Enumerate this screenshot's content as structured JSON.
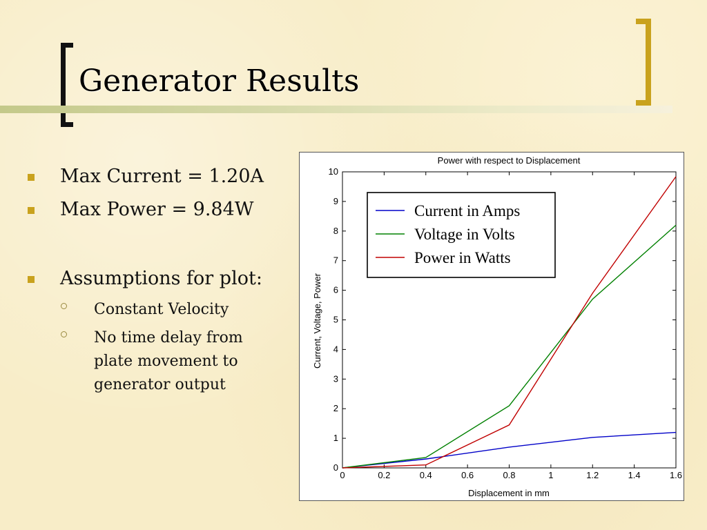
{
  "slide": {
    "title": "Generator Results",
    "bullets": [
      {
        "text": "Max Current = 1.20A"
      },
      {
        "text": "Max Power = 9.84W"
      },
      {
        "text": "Assumptions for plot:"
      }
    ],
    "sub_bullets": [
      {
        "text": "Constant Velocity"
      },
      {
        "text": "No time delay from plate movement to generator output"
      }
    ],
    "colors": {
      "accent": "#c9a21d",
      "background": "#f8edc8"
    }
  },
  "chart_data": {
    "type": "line",
    "title": "Power with respect to Displacement",
    "xlabel": "Displacement in mm",
    "ylabel": "Current, Voltage, Power",
    "xlim": [
      0,
      1.6
    ],
    "ylim": [
      0,
      10
    ],
    "xticks": [
      0,
      0.2,
      0.4,
      0.6,
      0.8,
      1,
      1.2,
      1.4,
      1.6
    ],
    "yticks": [
      0,
      1,
      2,
      3,
      4,
      5,
      6,
      7,
      8,
      9,
      10
    ],
    "grid": false,
    "legend_position": "top-left",
    "series": [
      {
        "name": "Current in Amps",
        "color": "#0000c8",
        "x": [
          0,
          0.4,
          0.8,
          1.2,
          1.6
        ],
        "y": [
          0,
          0.3,
          0.7,
          1.03,
          1.2
        ]
      },
      {
        "name": "Voltage in Volts",
        "color": "#008000",
        "x": [
          0,
          0.4,
          0.8,
          1.2,
          1.6
        ],
        "y": [
          0,
          0.35,
          2.1,
          5.7,
          8.2
        ]
      },
      {
        "name": "Power in Watts",
        "color": "#c00000",
        "x": [
          0,
          0.4,
          0.8,
          1.2,
          1.6
        ],
        "y": [
          0,
          0.1,
          1.45,
          5.9,
          9.84
        ]
      }
    ]
  }
}
